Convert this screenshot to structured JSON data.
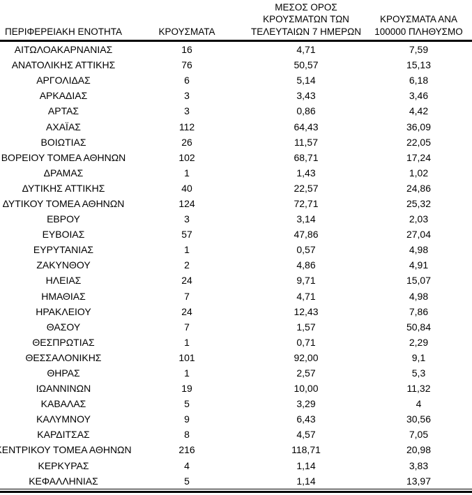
{
  "colors": {
    "text": "#000000",
    "background": "#ffffff",
    "rule": "#000000"
  },
  "table": {
    "header": {
      "col1": "ΠΕΡΙΦΕΡΕΙΑΚΗ ΕΝΟΤΗΤΑ",
      "col2": "ΚΡΟΥΣΜΑΤΑ",
      "col3_lines": [
        "ΜΕΣΟΣ ΟΡΟΣ",
        "ΚΡΟΥΣΜΑΤΩΝ ΤΩΝ",
        "ΤΕΛΕΥΤΑΙΩΝ 7 ΗΜΕΡΩΝ"
      ],
      "col4_lines": [
        "ΚΡΟΥΣΜΑΤΑ ΑΝΑ",
        "100000 ΠΛΗΘΥΣΜΟ"
      ]
    },
    "rows": [
      [
        "ΑΙΤΩΛΟΑΚΑΡΝΑΝΙΑΣ",
        "16",
        "4,71",
        "7,59"
      ],
      [
        "ΑΝΑΤΟΛΙΚΗΣ ΑΤΤΙΚΗΣ",
        "76",
        "50,57",
        "15,13"
      ],
      [
        "ΑΡΓΟΛΙΔΑΣ",
        "6",
        "5,14",
        "6,18"
      ],
      [
        "ΑΡΚΑΔΙΑΣ",
        "3",
        "3,43",
        "3,46"
      ],
      [
        "ΑΡΤΑΣ",
        "3",
        "0,86",
        "4,42"
      ],
      [
        "ΑΧΑΪΑΣ",
        "112",
        "64,43",
        "36,09"
      ],
      [
        "ΒΟΙΩΤΙΑΣ",
        "26",
        "11,57",
        "22,05"
      ],
      [
        "ΒΟΡΕΙΟΥ ΤΟΜΕΑ ΑΘΗΝΩΝ",
        "102",
        "68,71",
        "17,24"
      ],
      [
        "ΔΡΑΜΑΣ",
        "1",
        "1,43",
        "1,02"
      ],
      [
        "ΔΥΤΙΚΗΣ ΑΤΤΙΚΗΣ",
        "40",
        "22,57",
        "24,86"
      ],
      [
        "ΔΥΤΙΚΟΥ ΤΟΜΕΑ ΑΘΗΝΩΝ",
        "124",
        "72,71",
        "25,32"
      ],
      [
        "ΕΒΡΟΥ",
        "3",
        "3,14",
        "2,03"
      ],
      [
        "ΕΥΒΟΙΑΣ",
        "57",
        "47,86",
        "27,04"
      ],
      [
        "ΕΥΡΥΤΑΝΙΑΣ",
        "1",
        "0,57",
        "4,98"
      ],
      [
        "ΖΑΚΥΝΘΟΥ",
        "2",
        "4,86",
        "4,91"
      ],
      [
        "ΗΛΕΙΑΣ",
        "24",
        "9,71",
        "15,07"
      ],
      [
        "ΗΜΑΘΙΑΣ",
        "7",
        "4,71",
        "4,98"
      ],
      [
        "ΗΡΑΚΛΕΙΟΥ",
        "24",
        "12,43",
        "7,86"
      ],
      [
        "ΘΑΣΟΥ",
        "7",
        "1,57",
        "50,84"
      ],
      [
        "ΘΕΣΠΡΩΤΙΑΣ",
        "1",
        "0,71",
        "2,29"
      ],
      [
        "ΘΕΣΣΑΛΟΝΙΚΗΣ",
        "101",
        "92,00",
        "9,1"
      ],
      [
        "ΘΗΡΑΣ",
        "1",
        "2,57",
        "5,3"
      ],
      [
        "ΙΩΑΝΝΙΝΩΝ",
        "19",
        "10,00",
        "11,32"
      ],
      [
        "ΚΑΒΑΛΑΣ",
        "5",
        "3,29",
        "4"
      ],
      [
        "ΚΑΛΥΜΝΟΥ",
        "9",
        "6,43",
        "30,56"
      ],
      [
        "ΚΑΡΔΙΤΣΑΣ",
        "8",
        "4,57",
        "7,05"
      ],
      [
        "ΚΕΝΤΡΙΚΟΥ ΤΟΜΕΑ ΑΘΗΝΩΝ",
        "216",
        "118,71",
        "20,98"
      ],
      [
        "ΚΕΡΚΥΡΑΣ",
        "4",
        "1,14",
        "3,83"
      ],
      [
        "ΚΕΦΑΛΛΗΝΙΑΣ",
        "5",
        "1,14",
        "13,97"
      ]
    ]
  }
}
